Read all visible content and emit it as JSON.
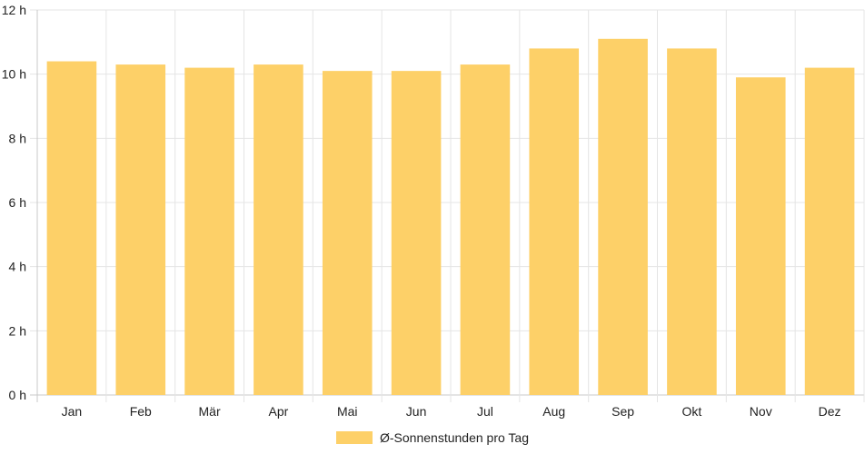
{
  "chart_data": {
    "type": "bar",
    "categories": [
      "Jan",
      "Feb",
      "Mär",
      "Apr",
      "Mai",
      "Jun",
      "Jul",
      "Aug",
      "Sep",
      "Okt",
      "Nov",
      "Dez"
    ],
    "series": [
      {
        "name": "Ø-Sonnenstunden pro Tag",
        "values": [
          10.4,
          10.3,
          10.2,
          10.3,
          10.1,
          10.1,
          10.3,
          10.8,
          11.1,
          10.8,
          9.9,
          10.2
        ],
        "color": "#FDD068"
      }
    ],
    "y_ticks": [
      "0 h",
      "2 h",
      "4 h",
      "6 h",
      "8 h",
      "10 h",
      "12 h"
    ],
    "ylim": [
      0,
      12
    ],
    "grid": true,
    "legend_position": "bottom"
  }
}
